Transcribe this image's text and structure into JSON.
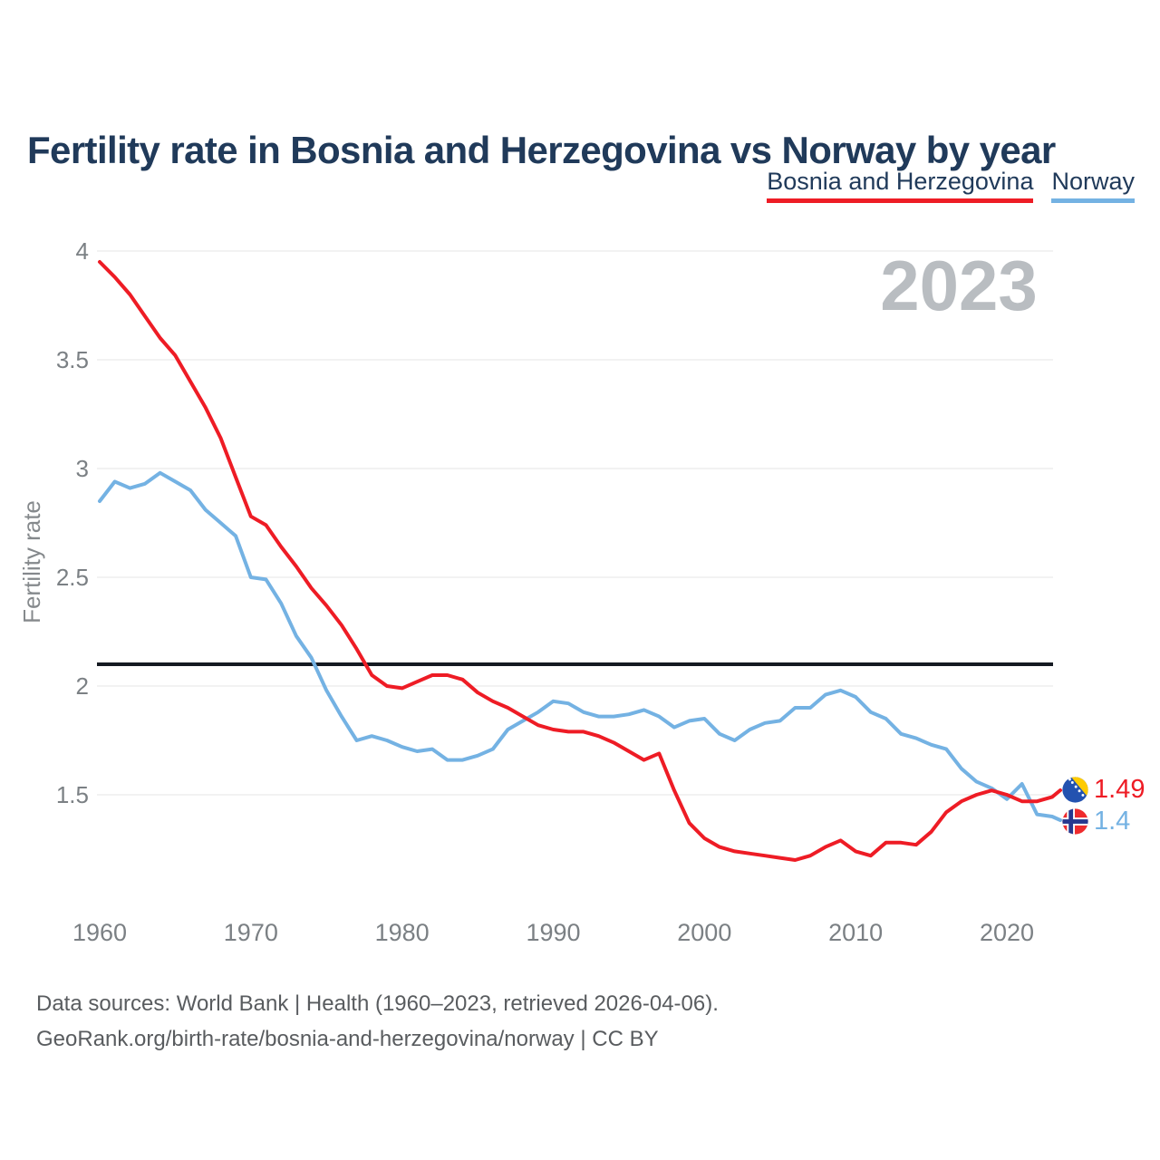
{
  "title": "Fertility rate in Bosnia and Herzegovina vs Norway by year",
  "watermark": "2023",
  "legend": {
    "items": [
      {
        "label": "Bosnia and Herzegovina",
        "color": "#ee1c25"
      },
      {
        "label": "Norway",
        "color": "#74b2e3"
      }
    ]
  },
  "end_labels": {
    "bosnia": {
      "value": "1.49",
      "flag": "bosnia-and-herzegovina-flag"
    },
    "norway": {
      "value": "1.4",
      "flag": "norway-flag"
    }
  },
  "footer": {
    "line1": "Data sources: World Bank | Health (1960–2023, retrieved 2026-04-06).",
    "line2": "GeoRank.org/birth-rate/bosnia-and-herzegovina/norway | CC BY"
  },
  "chart_data": {
    "type": "line",
    "title": "Fertility rate in Bosnia and Herzegovina vs Norway by year",
    "xlabel": "",
    "ylabel": "Fertility rate",
    "grid": "horizontal",
    "legend_position": "top-right",
    "x_ticks": [
      1960,
      1970,
      1980,
      1990,
      2000,
      2010,
      2020
    ],
    "y_ticks": [
      1.5,
      2,
      2.5,
      3,
      3.5,
      4
    ],
    "ylim": [
      1.1,
      4.05
    ],
    "xlim": [
      1960,
      2023
    ],
    "reference_line": {
      "value": 2.1,
      "color": "#151a22"
    },
    "x": [
      1960,
      1961,
      1962,
      1963,
      1964,
      1965,
      1966,
      1967,
      1968,
      1969,
      1970,
      1971,
      1972,
      1973,
      1974,
      1975,
      1976,
      1977,
      1978,
      1979,
      1980,
      1981,
      1982,
      1983,
      1984,
      1985,
      1986,
      1987,
      1988,
      1989,
      1990,
      1991,
      1992,
      1993,
      1994,
      1995,
      1996,
      1997,
      1998,
      1999,
      2000,
      2001,
      2002,
      2003,
      2004,
      2005,
      2006,
      2007,
      2008,
      2009,
      2010,
      2011,
      2012,
      2013,
      2014,
      2015,
      2016,
      2017,
      2018,
      2019,
      2020,
      2021,
      2022,
      2023
    ],
    "series": [
      {
        "name": "Bosnia and Herzegovina",
        "color": "#ee1c25",
        "values": [
          3.95,
          3.88,
          3.8,
          3.7,
          3.6,
          3.52,
          3.4,
          3.28,
          3.14,
          2.96,
          2.78,
          2.74,
          2.64,
          2.55,
          2.45,
          2.37,
          2.28,
          2.17,
          2.05,
          2.0,
          1.99,
          2.02,
          2.05,
          2.05,
          2.03,
          1.97,
          1.93,
          1.9,
          1.86,
          1.82,
          1.8,
          1.79,
          1.79,
          1.77,
          1.74,
          1.7,
          1.66,
          1.69,
          1.52,
          1.37,
          1.3,
          1.26,
          1.24,
          1.23,
          1.22,
          1.21,
          1.2,
          1.22,
          1.26,
          1.29,
          1.24,
          1.22,
          1.28,
          1.28,
          1.27,
          1.33,
          1.42,
          1.47,
          1.5,
          1.52,
          1.5,
          1.47,
          1.47,
          1.49
        ]
      },
      {
        "name": "Norway",
        "color": "#74b2e3",
        "values": [
          2.85,
          2.94,
          2.91,
          2.93,
          2.98,
          2.94,
          2.9,
          2.81,
          2.75,
          2.69,
          2.5,
          2.49,
          2.38,
          2.23,
          2.13,
          1.98,
          1.86,
          1.75,
          1.77,
          1.75,
          1.72,
          1.7,
          1.71,
          1.66,
          1.66,
          1.68,
          1.71,
          1.8,
          1.84,
          1.88,
          1.93,
          1.92,
          1.88,
          1.86,
          1.86,
          1.87,
          1.89,
          1.86,
          1.81,
          1.84,
          1.85,
          1.78,
          1.75,
          1.8,
          1.83,
          1.84,
          1.9,
          1.9,
          1.96,
          1.98,
          1.95,
          1.88,
          1.85,
          1.78,
          1.76,
          1.73,
          1.71,
          1.62,
          1.56,
          1.53,
          1.48,
          1.55,
          1.41,
          1.4
        ]
      }
    ]
  }
}
